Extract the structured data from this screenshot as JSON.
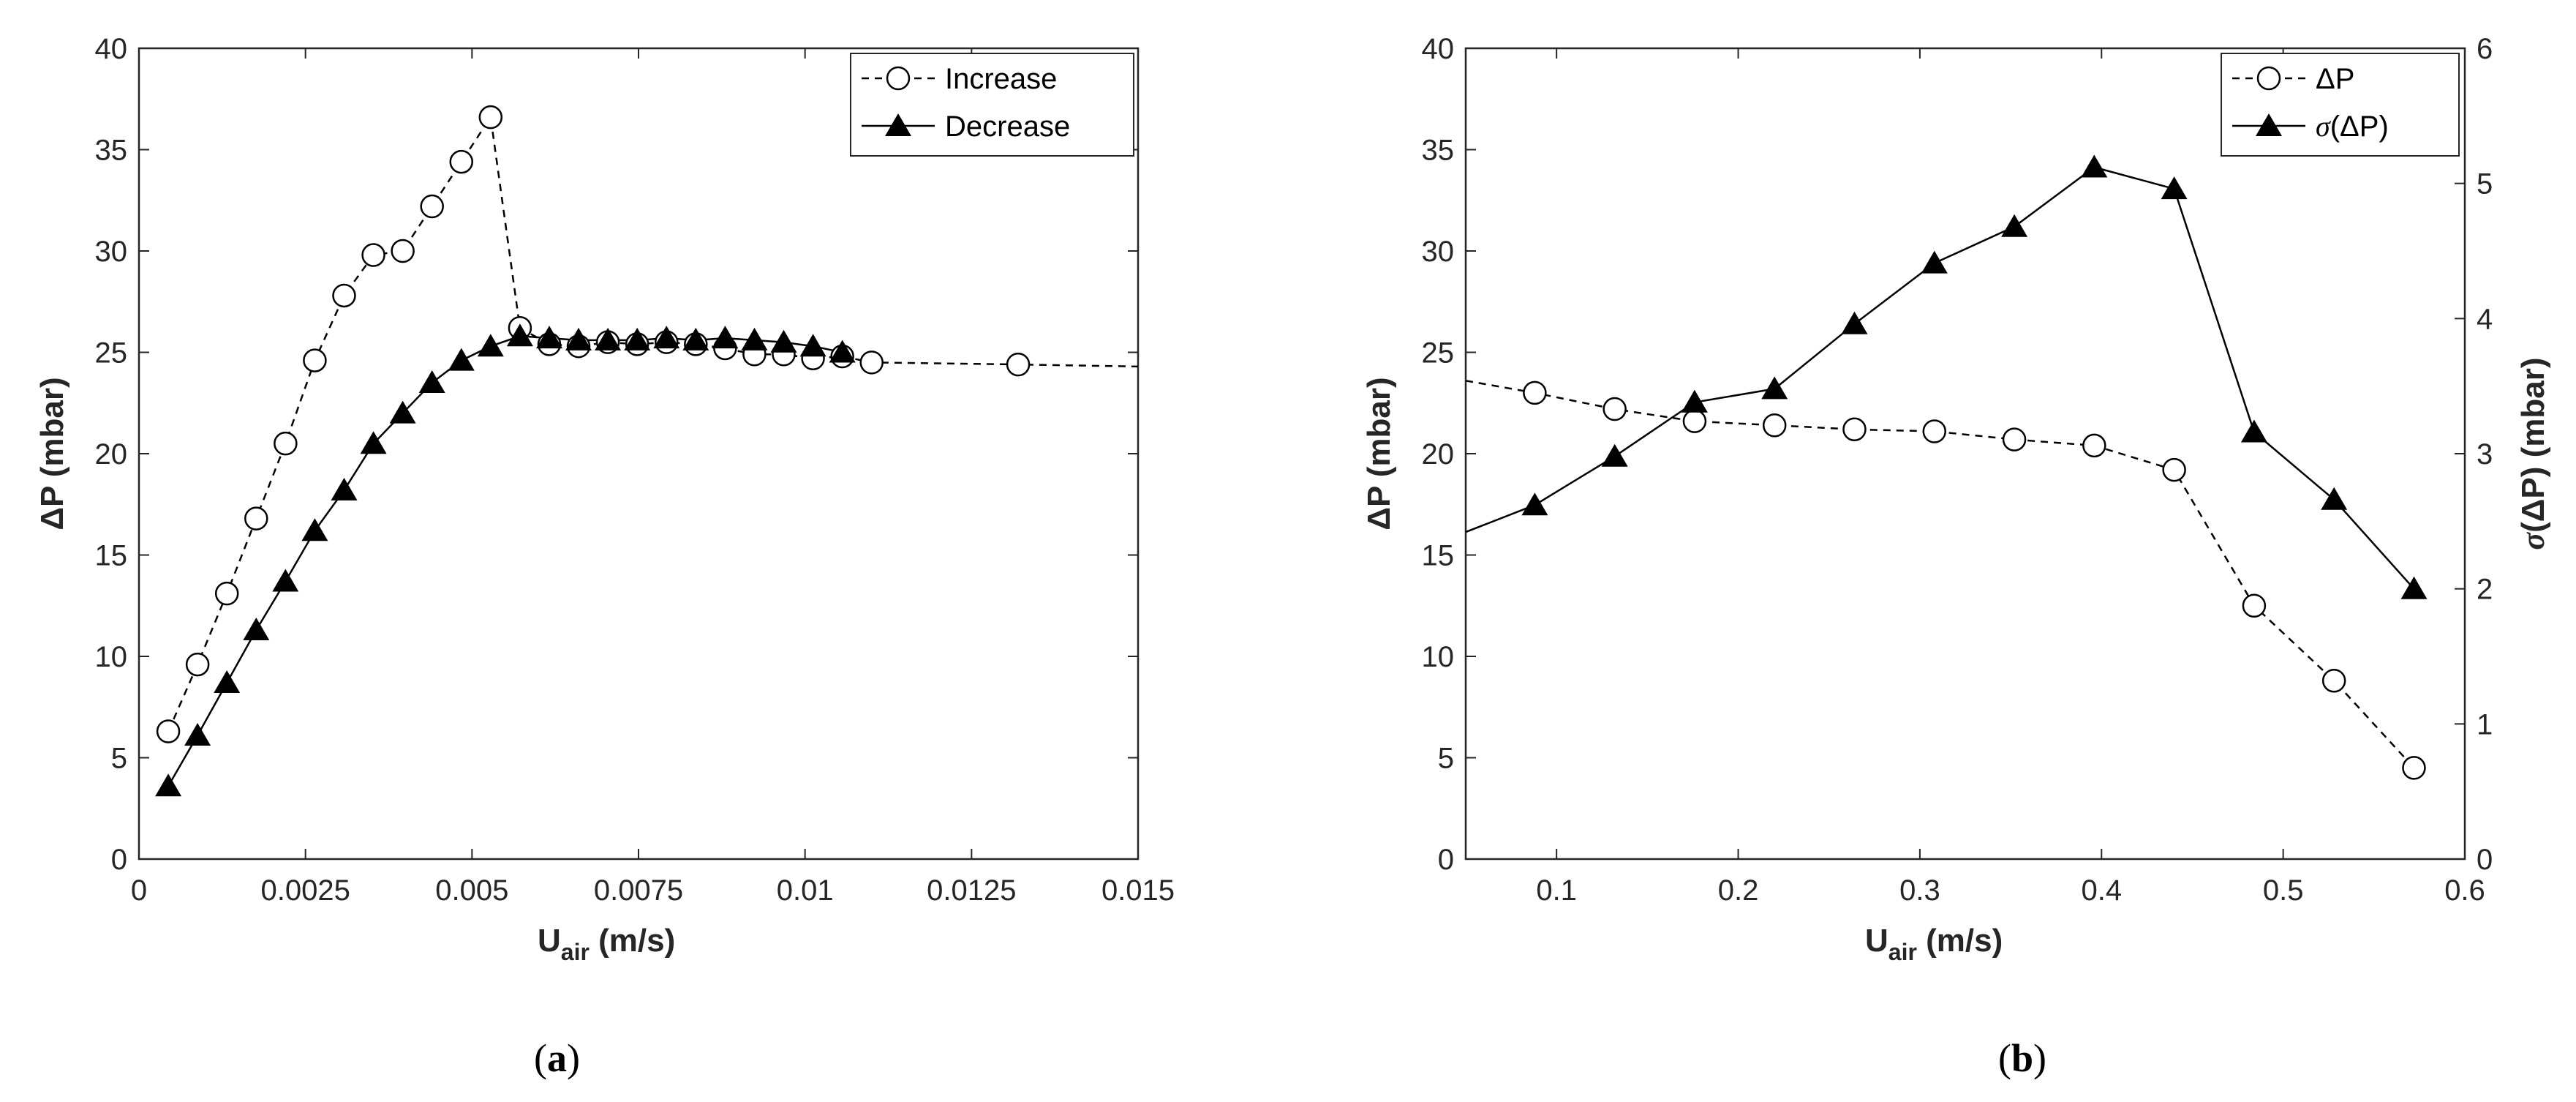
{
  "chart_data": [
    {
      "type": "line",
      "panel_label": "(a)",
      "panel_label_parts": [
        "(",
        "a",
        ")"
      ],
      "xlabel": "U",
      "xlabel_sub": "air",
      "xlabel_unit": " (m/s)",
      "ylabel": "ΔP (mbar)",
      "xlim": [
        0,
        0.015
      ],
      "ylim": [
        0,
        40
      ],
      "xticks": [
        0,
        0.0025,
        0.005,
        0.0075,
        0.01,
        0.0125,
        0.015
      ],
      "xtick_labels": [
        "0",
        "0.0025",
        "0.005",
        "0.0075",
        "0.01",
        "0.0125",
        "0.015"
      ],
      "yticks": [
        0,
        5,
        10,
        15,
        20,
        25,
        30,
        35,
        40
      ],
      "ytick_labels": [
        "0",
        "5",
        "10",
        "15",
        "20",
        "25",
        "30",
        "35",
        "40"
      ],
      "legend_position": "top-right",
      "series": [
        {
          "name": "Increase",
          "marker": "circle-open",
          "line": "dashed",
          "x": [
            0.00044,
            0.00088,
            0.00132,
            0.00176,
            0.0022,
            0.00264,
            0.00308,
            0.00352,
            0.00396,
            0.0044,
            0.00484,
            0.00528,
            0.00572,
            0.00616,
            0.0066,
            0.00704,
            0.00748,
            0.00792,
            0.00836,
            0.0088,
            0.00924,
            0.00968,
            0.01012,
            0.01056,
            0.011,
            0.0132
          ],
          "y": [
            6.3,
            9.6,
            13.1,
            16.8,
            20.5,
            24.6,
            27.8,
            29.8,
            30.0,
            32.2,
            34.4,
            36.6,
            26.2,
            25.4,
            25.3,
            25.5,
            25.4,
            25.5,
            25.4,
            25.2,
            24.9,
            24.9,
            24.7,
            24.8,
            24.5,
            24.4
          ],
          "extend_to": [
            0.015,
            24.3
          ]
        },
        {
          "name": "Decrease",
          "marker": "triangle-filled",
          "line": "solid",
          "x": [
            0.00044,
            0.00088,
            0.00132,
            0.00176,
            0.0022,
            0.00264,
            0.00308,
            0.00352,
            0.00396,
            0.0044,
            0.00484,
            0.00528,
            0.00572,
            0.00616,
            0.0066,
            0.00704,
            0.00748,
            0.00792,
            0.00836,
            0.0088,
            0.00924,
            0.00968,
            0.01012,
            0.01056
          ],
          "y": [
            3.6,
            6.1,
            8.7,
            11.3,
            13.7,
            16.2,
            18.2,
            20.5,
            22.0,
            23.5,
            24.6,
            25.3,
            25.8,
            25.7,
            25.6,
            25.6,
            25.6,
            25.7,
            25.6,
            25.7,
            25.6,
            25.5,
            25.3,
            25.0
          ]
        }
      ]
    },
    {
      "type": "line",
      "panel_label": "(b)",
      "panel_label_parts": [
        "(",
        "b",
        ")"
      ],
      "xlabel": "U",
      "xlabel_sub": "air",
      "xlabel_unit": " (m/s)",
      "ylabel": "ΔP (mbar)",
      "ylabel_right_sigma": "σ",
      "ylabel_right_rest": "(ΔP) (mbar)",
      "xlim": [
        0.05,
        0.6
      ],
      "ylim": [
        0,
        40
      ],
      "ylim_right": [
        0,
        6
      ],
      "xticks": [
        0.1,
        0.2,
        0.3,
        0.4,
        0.5,
        0.6
      ],
      "xtick_labels": [
        "0.1",
        "0.2",
        "0.3",
        "0.4",
        "0.5",
        "0.6"
      ],
      "yticks": [
        0,
        5,
        10,
        15,
        20,
        25,
        30,
        35,
        40
      ],
      "ytick_labels": [
        "0",
        "5",
        "10",
        "15",
        "20",
        "25",
        "30",
        "35",
        "40"
      ],
      "yticks_right": [
        0,
        1,
        2,
        3,
        4,
        5,
        6
      ],
      "ytick_labels_right": [
        "0",
        "1",
        "2",
        "3",
        "4",
        "5",
        "6"
      ],
      "legend_position": "top-right",
      "series": [
        {
          "name": "ΔP",
          "axis": "left",
          "marker": "circle-open",
          "line": "dashed",
          "x": [
            0.088,
            0.132,
            0.176,
            0.22,
            0.264,
            0.308,
            0.352,
            0.396,
            0.44,
            0.484,
            0.528,
            0.572
          ],
          "y": [
            23.0,
            22.2,
            21.6,
            21.4,
            21.2,
            21.1,
            20.7,
            20.4,
            19.2,
            12.5,
            8.8,
            4.5
          ],
          "extend_from": [
            0.05,
            23.6
          ]
        },
        {
          "name": "σ(ΔP)",
          "name_sigma": "σ",
          "name_rest": "(ΔP)",
          "axis": "right",
          "marker": "triangle-filled",
          "line": "solid",
          "x": [
            0.088,
            0.132,
            0.176,
            0.22,
            0.264,
            0.308,
            0.352,
            0.396,
            0.44,
            0.484,
            0.528,
            0.572
          ],
          "y": [
            2.62,
            2.98,
            3.38,
            3.48,
            3.96,
            4.41,
            4.68,
            5.12,
            4.96,
            3.16,
            2.66,
            2.0
          ],
          "extend_from": [
            0.05,
            2.42
          ]
        }
      ]
    }
  ]
}
